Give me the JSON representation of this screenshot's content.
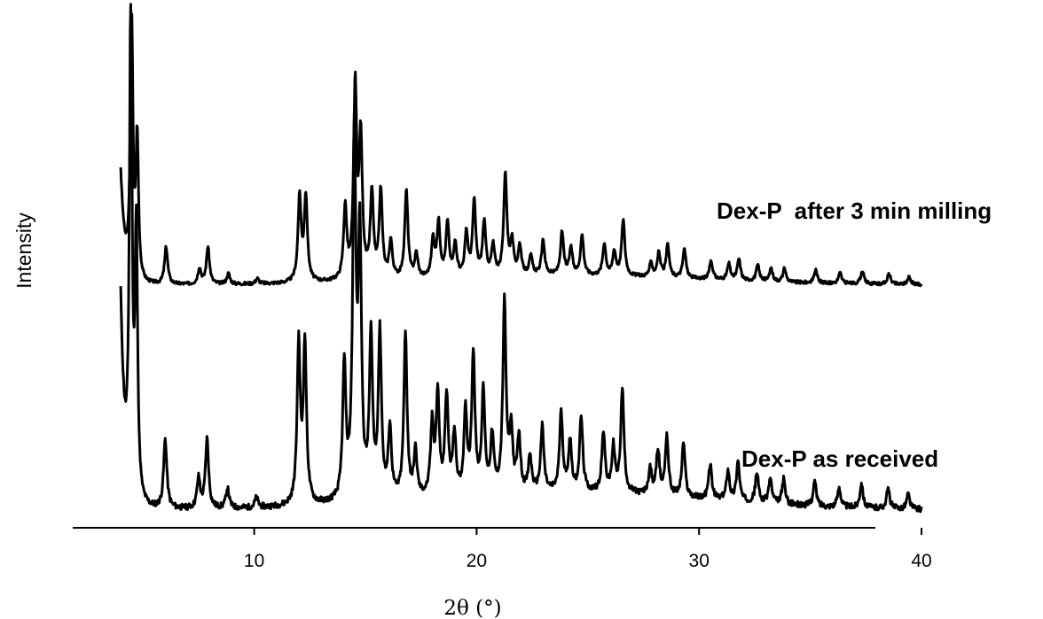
{
  "chart_data": {
    "type": "line",
    "xlabel": "2θ (°)",
    "ylabel": "Intensity",
    "xlim": [
      4,
      40
    ],
    "xticks": [
      10,
      20,
      30,
      40
    ],
    "y_ticks_shown": false,
    "grid": false,
    "peaks": [
      [
        4.45,
        1.0
      ],
      [
        4.7,
        0.53
      ],
      [
        6.0,
        0.14
      ],
      [
        7.5,
        0.06
      ],
      [
        7.88,
        0.14
      ],
      [
        8.8,
        0.04
      ],
      [
        10.1,
        0.02
      ],
      [
        12.0,
        0.32
      ],
      [
        12.28,
        0.32
      ],
      [
        14.05,
        0.27
      ],
      [
        14.5,
        0.72
      ],
      [
        14.75,
        0.52
      ],
      [
        15.25,
        0.32
      ],
      [
        15.65,
        0.33
      ],
      [
        16.1,
        0.14
      ],
      [
        16.8,
        0.33
      ],
      [
        17.25,
        0.09
      ],
      [
        18.0,
        0.14
      ],
      [
        18.25,
        0.2
      ],
      [
        18.65,
        0.2
      ],
      [
        19.0,
        0.12
      ],
      [
        19.5,
        0.16
      ],
      [
        19.85,
        0.28
      ],
      [
        20.3,
        0.2
      ],
      [
        20.7,
        0.11
      ],
      [
        21.25,
        0.38
      ],
      [
        21.55,
        0.12
      ],
      [
        21.9,
        0.11
      ],
      [
        22.4,
        0.07
      ],
      [
        22.95,
        0.13
      ],
      [
        23.8,
        0.16
      ],
      [
        24.2,
        0.1
      ],
      [
        24.7,
        0.15
      ],
      [
        25.7,
        0.12
      ],
      [
        26.15,
        0.09
      ],
      [
        26.55,
        0.21
      ],
      [
        27.8,
        0.05
      ],
      [
        28.15,
        0.09
      ],
      [
        28.55,
        0.12
      ],
      [
        29.3,
        0.11
      ],
      [
        30.5,
        0.07
      ],
      [
        31.3,
        0.06
      ],
      [
        31.75,
        0.08
      ],
      [
        32.6,
        0.06
      ],
      [
        33.2,
        0.05
      ],
      [
        33.8,
        0.05
      ],
      [
        35.2,
        0.05
      ],
      [
        36.3,
        0.04
      ],
      [
        37.3,
        0.05
      ],
      [
        38.5,
        0.04
      ],
      [
        39.4,
        0.03
      ]
    ],
    "series": [
      {
        "name": "Dex-P  after 3 min milling"
      },
      {
        "name": "Dex-P as received"
      }
    ]
  }
}
